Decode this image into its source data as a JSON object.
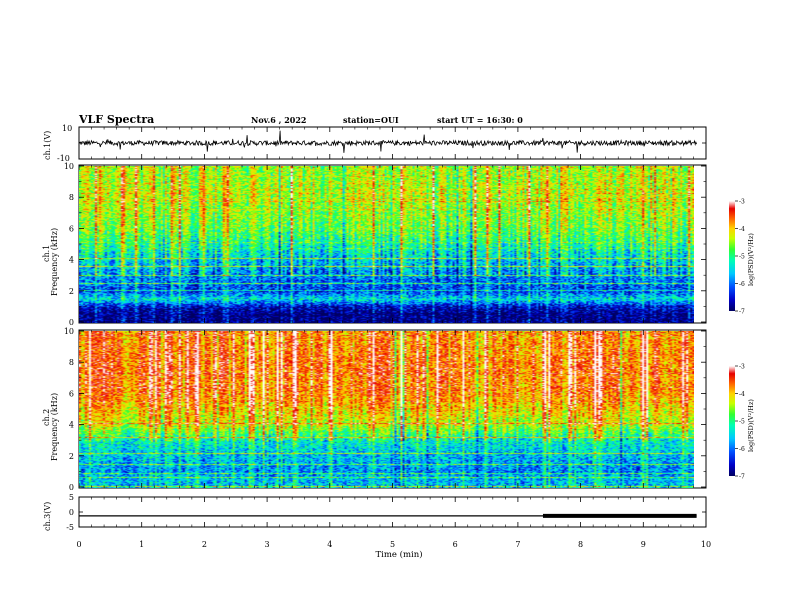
{
  "header": {
    "title": "VLF Spectra",
    "date": "Nov.6 , 2022",
    "station": "station=OUI",
    "start": "start UT = 16:30: 0"
  },
  "colors": {
    "colormap": [
      "#000060",
      "#0000c8",
      "#0050ff",
      "#00c8ff",
      "#00ffb4",
      "#32ff32",
      "#c8ff00",
      "#ffd200",
      "#ff6400",
      "#e60000",
      "#ffffff"
    ],
    "trace": "#000000",
    "axis": "#000000"
  },
  "chart_data": [
    {
      "type": "line",
      "panel": "ch1-waveform",
      "ylabel": "ch.1(V)",
      "ylim": [
        -10,
        10
      ],
      "yticks": [
        "10",
        "-10"
      ],
      "xlim": [
        0,
        10
      ],
      "description_values": {
        "baseline": 0,
        "noise_amplitude": 1.5
      }
    },
    {
      "type": "heatmap",
      "panel": "ch1-spectrogram",
      "ylabel": "ch.1 Frequency (kHz)",
      "ylim": [
        0,
        10
      ],
      "yticks": [
        "0",
        "2",
        "4",
        "6",
        "8",
        "10"
      ],
      "xlim": [
        0,
        9.85
      ],
      "colorbar": {
        "label": "log(PSD)(V²/Hz)",
        "range": [
          -7,
          -3
        ],
        "ticks": [
          "-3",
          "-4",
          "-5",
          "-6",
          "-7"
        ]
      },
      "profile_log_psd": [
        {
          "f": 0.5,
          "v": -6.9
        },
        {
          "f": 1.0,
          "v": -6.6
        },
        {
          "f": 1.5,
          "v": -5.6
        },
        {
          "f": 2.0,
          "v": -6.3
        },
        {
          "f": 3.0,
          "v": -6.0
        },
        {
          "f": 4.0,
          "v": -5.7
        },
        {
          "f": 6.0,
          "v": -4.9
        },
        {
          "f": 8.0,
          "v": -4.6
        },
        {
          "f": 10.0,
          "v": -4.7
        }
      ]
    },
    {
      "type": "heatmap",
      "panel": "ch2-spectrogram",
      "ylabel": "ch.2 Frequency (kHz)",
      "ylim": [
        0,
        10
      ],
      "yticks": [
        "0",
        "2",
        "4",
        "6",
        "8",
        "10"
      ],
      "xlim": [
        0,
        9.85
      ],
      "colorbar": {
        "label": "log(PSD)(V²/Hz)",
        "range": [
          -7,
          -3
        ],
        "ticks": [
          "-3",
          "-4",
          "-5",
          "-6",
          "-7"
        ]
      },
      "profile_log_psd": [
        {
          "f": 0.5,
          "v": -5.8
        },
        {
          "f": 1.0,
          "v": -6.0
        },
        {
          "f": 2.0,
          "v": -5.8
        },
        {
          "f": 3.0,
          "v": -5.5
        },
        {
          "f": 4.0,
          "v": -4.6
        },
        {
          "f": 6.0,
          "v": -3.9
        },
        {
          "f": 8.0,
          "v": -3.8
        },
        {
          "f": 10.0,
          "v": -4.0
        }
      ]
    },
    {
      "type": "line",
      "panel": "ch3-waveform",
      "ylabel": "ch.3(V)",
      "ylim": [
        -5,
        5
      ],
      "yticks": [
        "5",
        "0",
        "-5"
      ],
      "xlim": [
        0,
        10
      ],
      "level_V": -1.3,
      "thick_segment_from_min": 7.4
    }
  ],
  "xaxis": {
    "label": "Time (min)",
    "ticks": [
      "0",
      "1",
      "2",
      "3",
      "4",
      "5",
      "6",
      "7",
      "8",
      "9",
      "10"
    ]
  }
}
